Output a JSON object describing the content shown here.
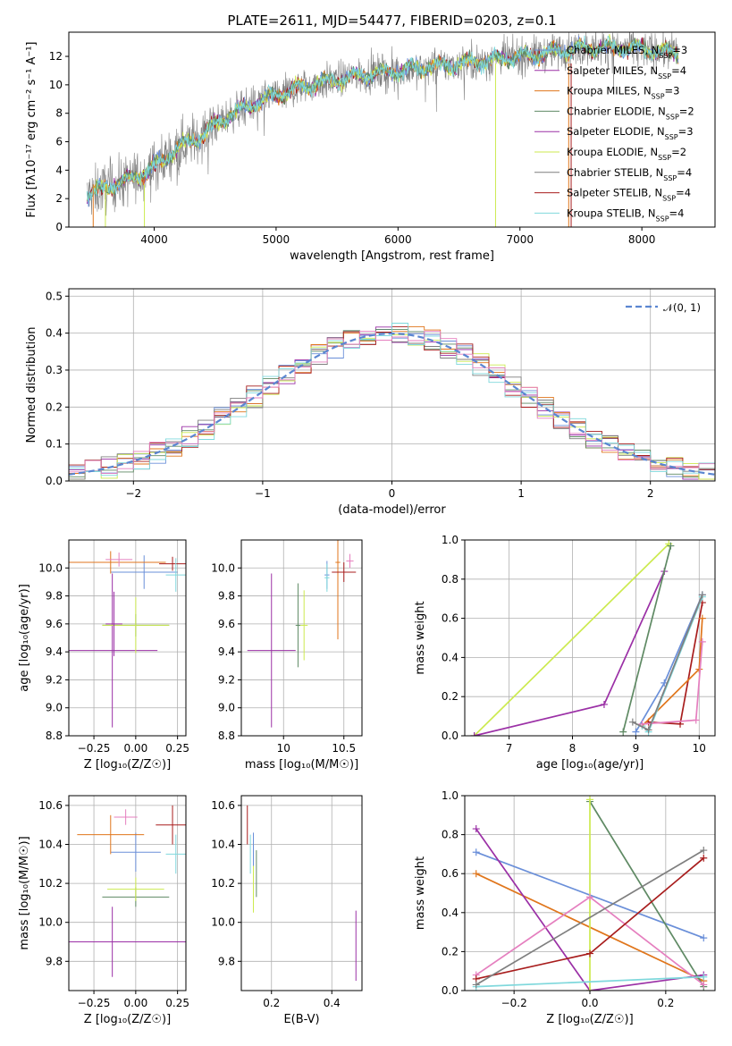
{
  "colors": {
    "Chabrier MILES": "#6a8fd9",
    "Salpeter MILES": "#9b30a6",
    "Kroupa MILES": "#e0761c",
    "Chabrier ELODIE": "#5f8a64",
    "Salpeter ELODIE": "#9b30a6",
    "Kroupa ELODIE": "#ccea4f",
    "Chabrier STELIB": "#7f7f7f",
    "Salpeter STELIB": "#a81d1d",
    "Kroupa STELIB": "#7fd8dc",
    "normal": "#5b86d1",
    "pink": "#e57fbf"
  },
  "chart_data": [
    {
      "id": "spectrum",
      "type": "line",
      "title": "PLATE=2611, MJD=54477, FIBERID=0203, z=0.1",
      "xlabel": "wavelength [Angstrom, rest frame]",
      "ylabel": "Flux [fλ10⁻¹⁷ erg cm⁻² s⁻¹ A⁻¹]",
      "xlim": [
        3300,
        8600
      ],
      "ylim": [
        0,
        13.7
      ],
      "xticks": [
        "4000",
        "5000",
        "6000",
        "7000",
        "8000"
      ],
      "yticks": [
        "0",
        "2",
        "4",
        "6",
        "8",
        "10",
        "12"
      ],
      "legend_position": "top-right",
      "legend": [
        "Chabrier MILES, NSSP=3",
        "Salpeter MILES, NSSP=4",
        "Kroupa MILES, NSSP=3",
        "Chabrier ELODIE, NSSP=2",
        "Salpeter ELODIE, NSSP=3",
        "Kroupa ELODIE, NSSP=2",
        "Chabrier STELIB, NSSP=4",
        "Salpeter STELIB, NSSP=4",
        "Kroupa STELIB, NSSP=4"
      ],
      "model_flux_trend": {
        "x": [
          3450,
          3600,
          3800,
          4000,
          4200,
          4400,
          4600,
          4800,
          5000,
          5200,
          5400,
          5600,
          5800,
          6000,
          6200,
          6400,
          6600,
          6800,
          7000,
          7200,
          7400,
          7600,
          7800,
          8000,
          8200
        ],
        "y": [
          2.2,
          2.8,
          3.3,
          4.2,
          5.6,
          6.5,
          7.8,
          8.6,
          9.3,
          9.8,
          10.2,
          10.5,
          10.8,
          11.0,
          11.2,
          11.4,
          11.6,
          11.8,
          12.0,
          12.2,
          12.5,
          12.6,
          12.6,
          12.5,
          12.3
        ]
      }
    },
    {
      "id": "residuals",
      "type": "line",
      "xlabel": "(data-model)/error",
      "ylabel": "Normed distribution",
      "xlim": [
        -2.5,
        2.5
      ],
      "ylim": [
        0,
        0.52
      ],
      "xticks": [
        "−2",
        "−1",
        "0",
        "1",
        "2"
      ],
      "yticks": [
        "0.0",
        "0.1",
        "0.2",
        "0.3",
        "0.4",
        "0.5"
      ],
      "legend_position": "top-right",
      "legend": [
        "𝒩(0, 1)"
      ],
      "grid": true
    },
    {
      "id": "age_vs_Z",
      "type": "scatter",
      "xlabel": "Z [log₁₀(Z/Z☉)]",
      "ylabel": "age  [log₁₀(age/yr)]",
      "xlim": [
        -0.4,
        0.3
      ],
      "ylim": [
        8.8,
        10.2
      ],
      "xticks": [
        "−0.25",
        "0.00",
        "0.25"
      ],
      "yticks": [
        "8.8",
        "9.0",
        "9.2",
        "9.4",
        "9.6",
        "9.8",
        "10.0"
      ],
      "grid": true,
      "points": [
        {
          "c": "Chabrier MILES",
          "x": 0.05,
          "xerr": 0.2,
          "y": 9.97,
          "yerr": 0.12
        },
        {
          "c": "Salpeter MILES",
          "x": -0.14,
          "xerr": 0.27,
          "y": 9.41,
          "yerr": 0.55
        },
        {
          "c": "Kroupa MILES",
          "x": -0.15,
          "xerr": 0.33,
          "y": 10.04,
          "yerr": 0.08
        },
        {
          "c": "Chabrier ELODIE",
          "x": 0.0,
          "xerr": 0.2,
          "y": 9.59,
          "yerr": 0.08
        },
        {
          "c": "Kroupa ELODIE",
          "x": 0.0,
          "xerr": 0.2,
          "y": 9.59,
          "yerr": 0.2
        },
        {
          "c": "Salpeter STELIB",
          "x": 0.22,
          "xerr": 0.08,
          "y": 10.03,
          "yerr": 0.05
        },
        {
          "c": "Kroupa STELIB",
          "x": 0.24,
          "xerr": 0.06,
          "y": 9.95,
          "yerr": 0.12
        },
        {
          "c": "pink",
          "x": -0.1,
          "xerr": 0.08,
          "y": 10.06,
          "yerr": 0.05
        },
        {
          "c": "Salpeter MILES",
          "x": -0.13,
          "xerr": 0.05,
          "y": 9.6,
          "yerr": 0.23
        }
      ]
    },
    {
      "id": "age_vs_mass",
      "type": "scatter",
      "xlabel": "mass [log₁₀(M/M☉)]",
      "xlim": [
        9.65,
        10.65
      ],
      "ylim": [
        8.8,
        10.2
      ],
      "xticks": [
        "10",
        "10.5"
      ],
      "yticks": [
        "8.8",
        "9.0",
        "9.2",
        "9.4",
        "9.6",
        "9.8",
        "10.0"
      ],
      "grid": true,
      "points": [
        {
          "c": "Chabrier MILES",
          "x": 10.36,
          "xerr": 0.02,
          "y": 9.95,
          "yerr": 0.1
        },
        {
          "c": "Salpeter MILES",
          "x": 9.9,
          "xerr": 0.2,
          "y": 9.41,
          "yerr": 0.55
        },
        {
          "c": "Kroupa MILES",
          "x": 10.45,
          "xerr": 0.02,
          "y": 10.04,
          "yerr": 0.55
        },
        {
          "c": "Chabrier ELODIE",
          "x": 10.12,
          "xerr": 0.02,
          "y": 9.59,
          "yerr": 0.3
        },
        {
          "c": "Kroupa ELODIE",
          "x": 10.17,
          "xerr": 0.03,
          "y": 9.59,
          "yerr": 0.25
        },
        {
          "c": "Salpeter STELIB",
          "x": 10.5,
          "xerr": 0.1,
          "y": 9.97,
          "yerr": 0.07
        },
        {
          "c": "Kroupa STELIB",
          "x": 10.36,
          "xerr": 0.02,
          "y": 9.93,
          "yerr": 0.1
        },
        {
          "c": "pink",
          "x": 10.55,
          "xerr": 0.03,
          "y": 10.05,
          "yerr": 0.05
        }
      ]
    },
    {
      "id": "weight_vs_age",
      "type": "line",
      "xlabel": "age  [log₁₀(age/yr)]",
      "ylabel": "mass weight",
      "xlim": [
        6.3,
        10.25
      ],
      "ylim": [
        0,
        1.0
      ],
      "xticks": [
        "7",
        "8",
        "9",
        "10"
      ],
      "yticks": [
        "0.0",
        "0.2",
        "0.4",
        "0.6",
        "0.8",
        "1.0"
      ],
      "grid": true,
      "series": [
        {
          "c": "Kroupa ELODIE",
          "x": [
            6.45,
            9.52
          ],
          "y": [
            0.0,
            0.98
          ]
        },
        {
          "c": "Salpeter ELODIE",
          "x": [
            6.45,
            8.5,
            9.45
          ],
          "y": [
            0.0,
            0.16,
            0.84
          ]
        },
        {
          "c": "Chabrier ELODIE",
          "x": [
            8.8,
            9.55
          ],
          "y": [
            0.02,
            0.97
          ]
        },
        {
          "c": "Chabrier MILES",
          "x": [
            9.0,
            9.45,
            10.05
          ],
          "y": [
            0.02,
            0.27,
            0.72
          ]
        },
        {
          "c": "Salpeter STELIB",
          "x": [
            9.2,
            9.7,
            10.05
          ],
          "y": [
            0.07,
            0.06,
            0.68
          ]
        },
        {
          "c": "Kroupa MILES",
          "x": [
            9.1,
            10.0,
            10.05
          ],
          "y": [
            0.05,
            0.34,
            0.6
          ]
        },
        {
          "c": "Kroupa STELIB",
          "x": [
            9.1,
            9.2,
            10.05
          ],
          "y": [
            0.05,
            0.02,
            0.71
          ]
        },
        {
          "c": "pink",
          "x": [
            9.1,
            9.95,
            10.05
          ],
          "y": [
            0.06,
            0.08,
            0.48
          ]
        },
        {
          "c": "Chabrier STELIB",
          "x": [
            8.95,
            9.2,
            10.05
          ],
          "y": [
            0.07,
            0.03,
            0.72
          ]
        }
      ]
    },
    {
      "id": "mass_vs_Z",
      "type": "scatter",
      "xlabel": "Z [log₁₀(Z/Z☉)]",
      "ylabel": "mass [log₁₀(M/M☉)]",
      "xlim": [
        -0.4,
        0.3
      ],
      "ylim": [
        9.65,
        10.65
      ],
      "xticks": [
        "−0.25",
        "0.00",
        "0.25"
      ],
      "yticks": [
        "9.8",
        "10.0",
        "10.2",
        "10.4",
        "10.6"
      ],
      "grid": true,
      "points": [
        {
          "c": "Chabrier MILES",
          "x": 0.0,
          "xerr": 0.15,
          "y": 10.36,
          "yerr": 0.1
        },
        {
          "c": "Salpeter MILES",
          "x": -0.14,
          "xerr": 0.45,
          "y": 9.9,
          "yerr": 0.18
        },
        {
          "c": "Kroupa MILES",
          "x": -0.15,
          "xerr": 0.2,
          "y": 10.45,
          "yerr": 0.1
        },
        {
          "c": "Chabrier ELODIE",
          "x": 0.0,
          "xerr": 0.2,
          "y": 10.13,
          "yerr": 0.05
        },
        {
          "c": "Kroupa ELODIE",
          "x": 0.0,
          "xerr": 0.17,
          "y": 10.17,
          "yerr": 0.06
        },
        {
          "c": "Salpeter STELIB",
          "x": 0.22,
          "xerr": 0.1,
          "y": 10.5,
          "yerr": 0.1
        },
        {
          "c": "Kroupa STELIB",
          "x": 0.24,
          "xerr": 0.06,
          "y": 10.35,
          "yerr": 0.1
        },
        {
          "c": "pink",
          "x": -0.06,
          "xerr": 0.07,
          "y": 10.54,
          "yerr": 0.04
        }
      ]
    },
    {
      "id": "mass_vs_EBV",
      "type": "scatter",
      "xlabel": "E(B-V)",
      "xlim": [
        0.1,
        0.5
      ],
      "ylim": [
        9.65,
        10.65
      ],
      "xticks": [
        "0.2",
        "0.4"
      ],
      "yticks": [
        "9.8",
        "10.0",
        "10.2",
        "10.4",
        "10.6"
      ],
      "grid": true,
      "points": [
        {
          "c": "Salpeter STELIB",
          "x": 0.12,
          "y": 10.5,
          "yerr": 0.1
        },
        {
          "c": "Chabrier MILES",
          "x": 0.14,
          "y": 10.36,
          "yerr": 0.1
        },
        {
          "c": "Kroupa STELIB",
          "x": 0.13,
          "y": 10.35,
          "yerr": 0.1
        },
        {
          "c": "Kroupa ELODIE",
          "x": 0.14,
          "y": 10.17,
          "yerr": 0.12
        },
        {
          "c": "Chabrier ELODIE",
          "x": 0.15,
          "y": 10.25,
          "yerr": 0.12
        },
        {
          "c": "Salpeter MILES",
          "x": 0.48,
          "y": 9.88,
          "yerr": 0.18
        }
      ]
    },
    {
      "id": "weight_vs_Z",
      "type": "line",
      "xlabel": "Z [log₁₀(Z/Z☉)]",
      "ylabel": "mass weight",
      "xlim": [
        -0.33,
        0.33
      ],
      "ylim": [
        0,
        1.0
      ],
      "xticks": [
        "−0.2",
        "0.0",
        "0.2"
      ],
      "yticks": [
        "0.0",
        "0.2",
        "0.4",
        "0.6",
        "0.8",
        "1.0"
      ],
      "grid": true,
      "series": [
        {
          "c": "Chabrier MILES",
          "x": [
            -0.3,
            0.3
          ],
          "y": [
            0.71,
            0.27
          ]
        },
        {
          "c": "Kroupa MILES",
          "x": [
            -0.3,
            0.3
          ],
          "y": [
            0.6,
            0.05
          ]
        },
        {
          "c": "Salpeter ELODIE",
          "x": [
            -0.3,
            0.0,
            0.3
          ],
          "y": [
            0.83,
            0.0,
            0.08
          ]
        },
        {
          "c": "Chabrier ELODIE",
          "x": [
            0.0,
            0.3
          ],
          "y": [
            0.97,
            0.02
          ]
        },
        {
          "c": "Kroupa ELODIE",
          "x": [
            0.0,
            0.0
          ],
          "y": [
            0.0,
            0.98
          ]
        },
        {
          "c": "pink",
          "x": [
            -0.3,
            0.0,
            0.3
          ],
          "y": [
            0.08,
            0.48,
            0.03
          ]
        },
        {
          "c": "Salpeter STELIB",
          "x": [
            -0.3,
            0.0,
            0.3
          ],
          "y": [
            0.06,
            0.19,
            0.68
          ]
        },
        {
          "c": "Kroupa STELIB",
          "x": [
            -0.3,
            0.3
          ],
          "y": [
            0.02,
            0.07
          ]
        },
        {
          "c": "Chabrier STELIB",
          "x": [
            -0.3,
            0.3
          ],
          "y": [
            0.03,
            0.72
          ]
        }
      ]
    }
  ]
}
